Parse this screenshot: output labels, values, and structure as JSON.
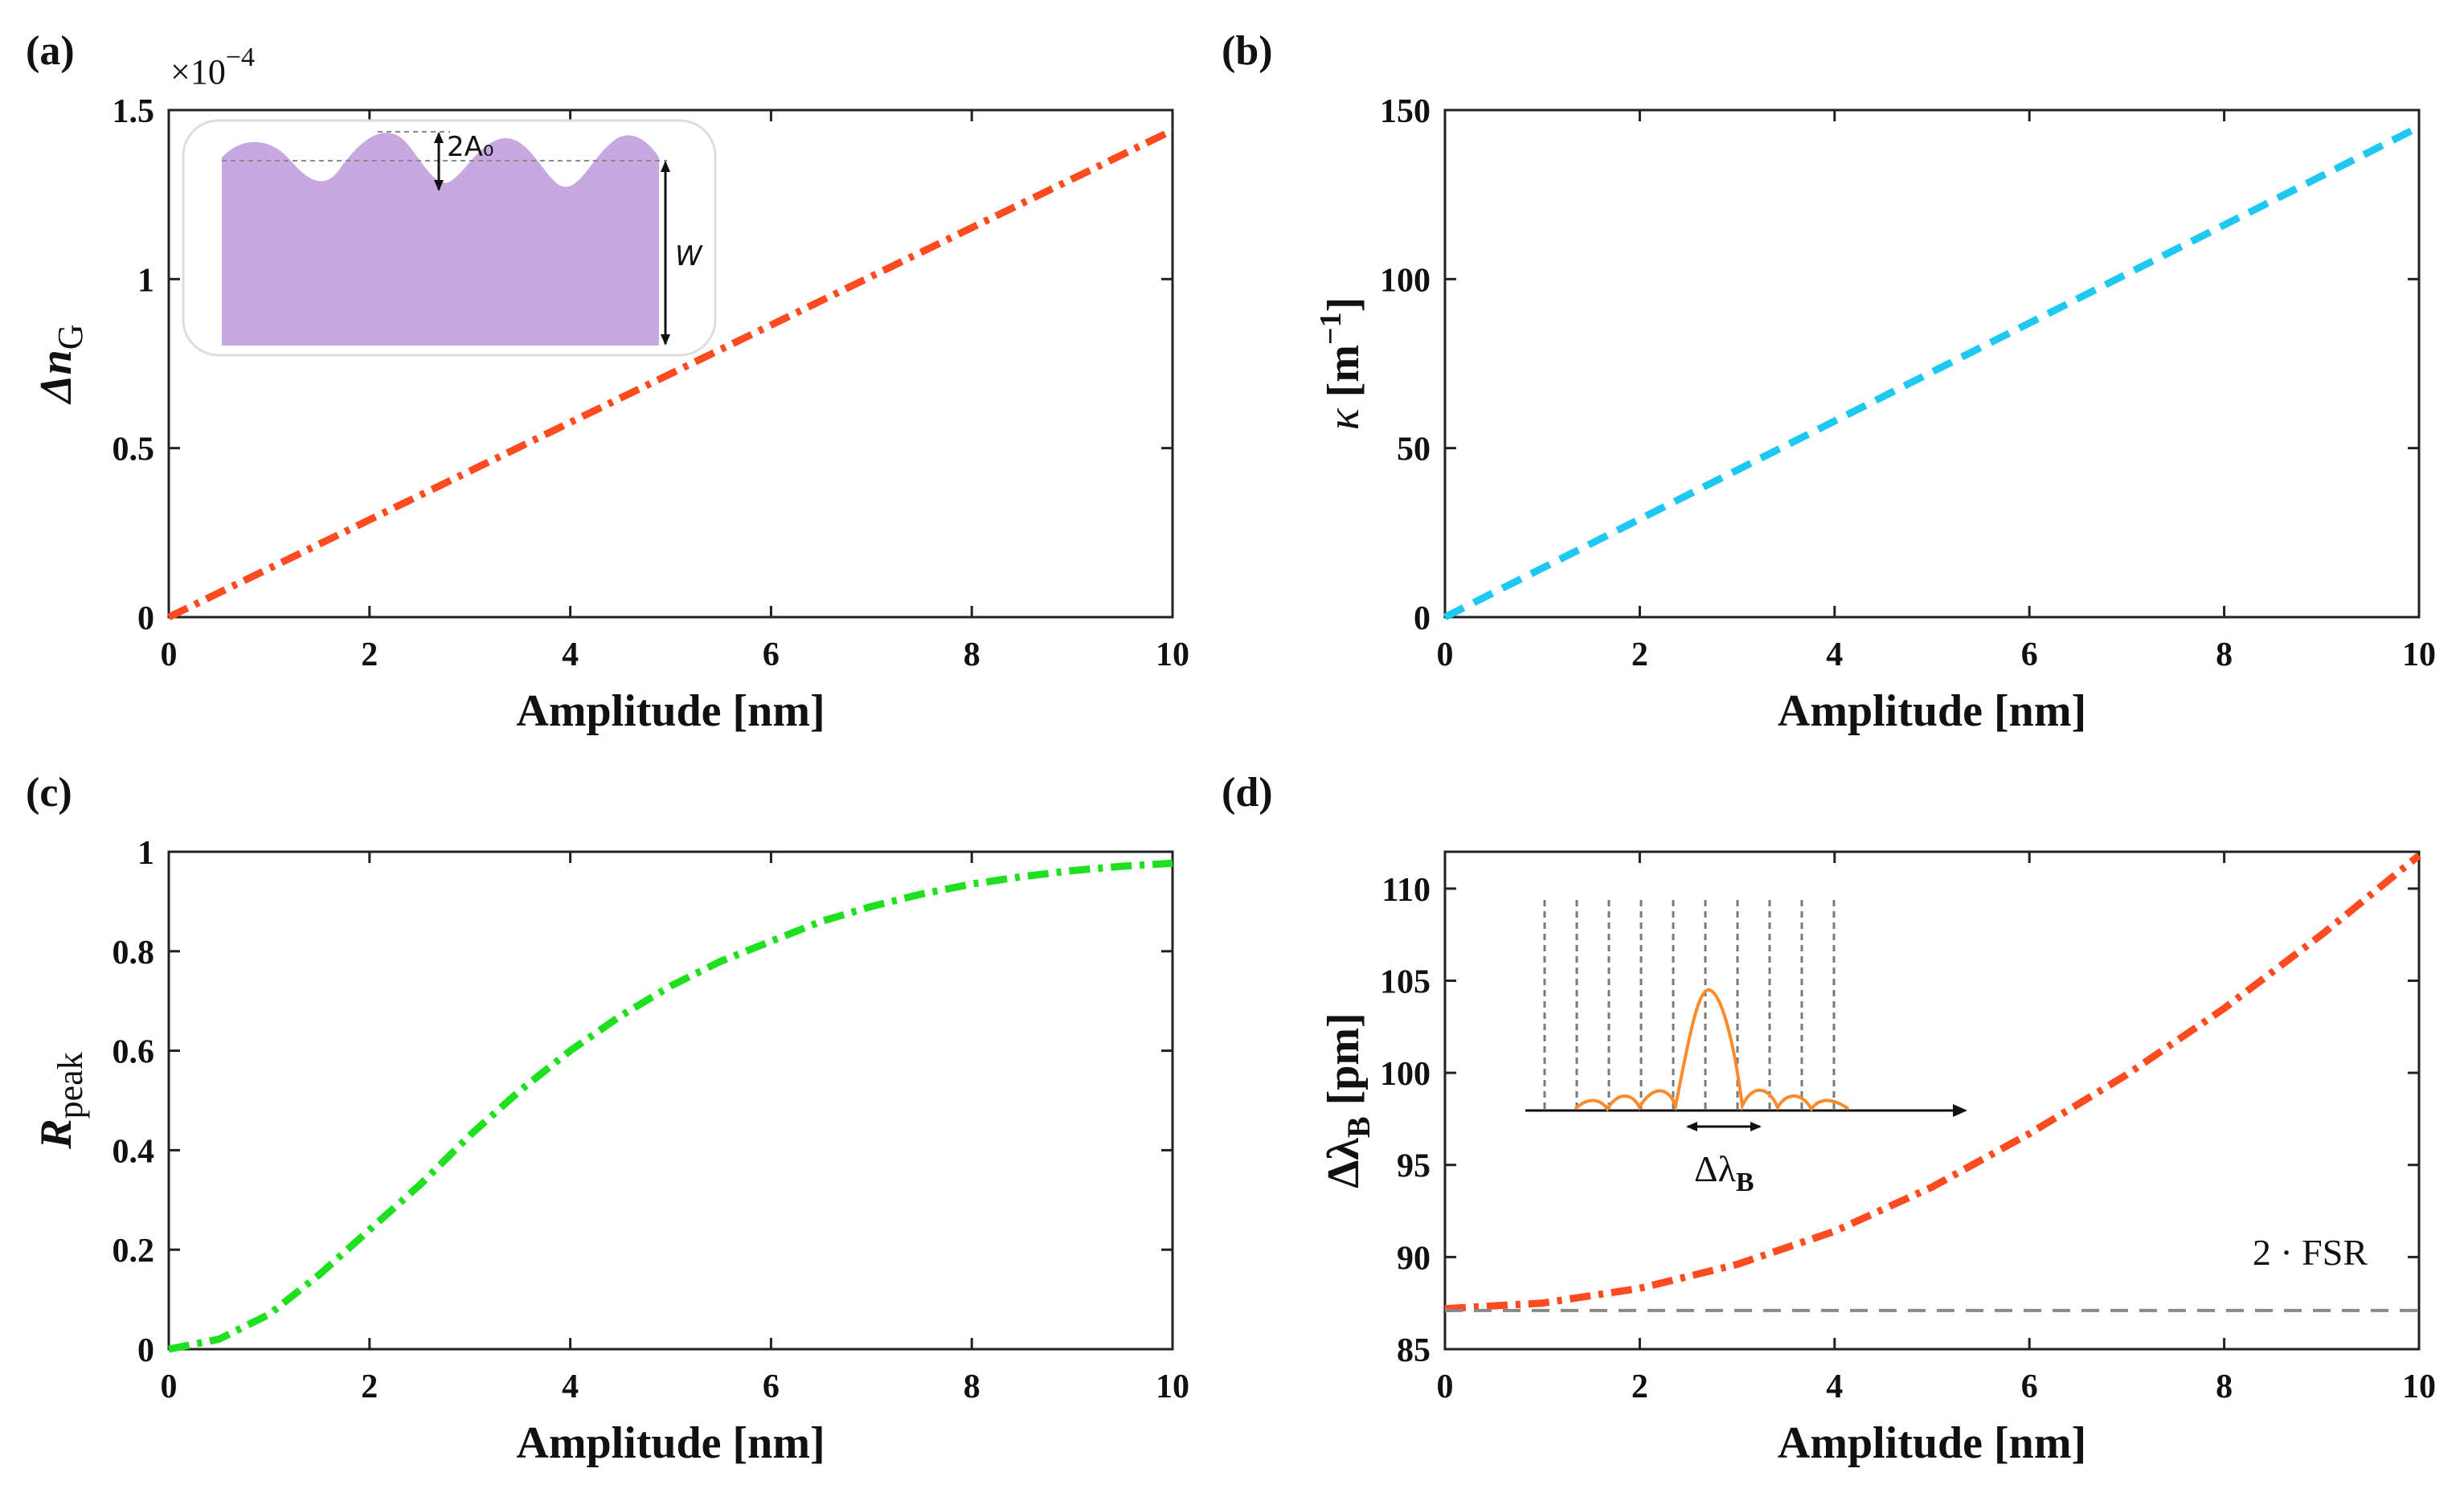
{
  "colors": {
    "orange": "#ff4b1f",
    "cyan": "#1ec8f0",
    "green": "#1ee01e",
    "axis": "#222222",
    "ref_line": "#888888",
    "inset_fill": "#c8a8e0"
  },
  "chart_data": [
    {
      "id": "a",
      "panel_label": "(a)",
      "type": "line",
      "xlabel": "Amplitude [nm]",
      "ylabel_main": "Δn",
      "ylabel_sub": "G",
      "multiplier_text": "×10",
      "multiplier_exp": "−4",
      "xlim": [
        0,
        10
      ],
      "ylim": [
        0,
        1.5
      ],
      "xticks": [
        0,
        2,
        4,
        6,
        8,
        10
      ],
      "yticks": [
        0,
        0.5,
        1,
        1.5
      ],
      "ytick_labels": [
        "0",
        "0.5",
        "1",
        "1.5"
      ],
      "series": [
        {
          "name": "Δn_G",
          "style": "dashdot",
          "color": "orange",
          "x": [
            0,
            10
          ],
          "y": [
            0,
            1.44
          ]
        }
      ],
      "inset": {
        "labels": [
          "2A₀",
          "W"
        ]
      }
    },
    {
      "id": "b",
      "panel_label": "(b)",
      "type": "line",
      "xlabel": "Amplitude [nm]",
      "ylabel_symbol": "κ",
      "ylabel_unit": "[m",
      "ylabel_exp": "−1",
      "ylabel_close": "]",
      "xlim": [
        0,
        10
      ],
      "ylim": [
        0,
        150
      ],
      "xticks": [
        0,
        2,
        4,
        6,
        8,
        10
      ],
      "yticks": [
        0,
        50,
        100,
        150
      ],
      "ytick_labels": [
        "0",
        "50",
        "100",
        "150"
      ],
      "series": [
        {
          "name": "κ",
          "style": "dashed",
          "color": "cyan",
          "x": [
            0,
            10
          ],
          "y": [
            0,
            145
          ]
        }
      ]
    },
    {
      "id": "c",
      "panel_label": "(c)",
      "type": "line",
      "xlabel": "Amplitude [nm]",
      "ylabel_main": "R",
      "ylabel_sub": "peak",
      "xlim": [
        0,
        10
      ],
      "ylim": [
        0,
        1
      ],
      "xticks": [
        0,
        2,
        4,
        6,
        8,
        10
      ],
      "yticks": [
        0,
        0.2,
        0.4,
        0.6,
        0.8,
        1
      ],
      "ytick_labels": [
        "0",
        "0.2",
        "0.4",
        "0.6",
        "0.8",
        "1"
      ],
      "series": [
        {
          "name": "R_peak",
          "style": "dashdot",
          "color": "green",
          "x": [
            0,
            0.5,
            1,
            1.5,
            2,
            2.5,
            3,
            3.5,
            4,
            4.5,
            5,
            5.5,
            6,
            6.5,
            7,
            7.5,
            8,
            8.5,
            9,
            9.5,
            10
          ],
          "y": [
            0,
            0.02,
            0.07,
            0.15,
            0.24,
            0.33,
            0.43,
            0.52,
            0.6,
            0.67,
            0.73,
            0.78,
            0.82,
            0.86,
            0.89,
            0.915,
            0.935,
            0.95,
            0.962,
            0.971,
            0.977
          ]
        }
      ]
    },
    {
      "id": "d",
      "panel_label": "(d)",
      "type": "line",
      "xlabel": "Amplitude [nm]",
      "ylabel_main": "Δλ",
      "ylabel_sub": "B",
      "ylabel_unit": "[pm]",
      "xlim": [
        0,
        10
      ],
      "ylim": [
        85,
        112
      ],
      "xticks": [
        0,
        2,
        4,
        6,
        8,
        10
      ],
      "yticks": [
        85,
        90,
        95,
        100,
        105,
        110
      ],
      "ytick_labels": [
        "85",
        "90",
        "95",
        "100",
        "105",
        "110"
      ],
      "series": [
        {
          "name": "Δλ_B",
          "style": "dashdot",
          "color": "orange",
          "x": [
            0,
            1,
            2,
            3,
            4,
            5,
            6,
            7,
            8,
            9,
            10
          ],
          "y": [
            87.2,
            87.5,
            88.3,
            89.6,
            91.4,
            93.8,
            96.7,
            99.9,
            103.5,
            107.5,
            111.8
          ]
        },
        {
          "name": "2 · FSR",
          "style": "dashed",
          "color": "ref_line",
          "x": [
            0,
            10
          ],
          "y": [
            87.1,
            87.1
          ]
        }
      ],
      "annotation": "2 · FSR",
      "inset": {
        "label_main": "Δλ",
        "label_sub": "B"
      }
    }
  ]
}
